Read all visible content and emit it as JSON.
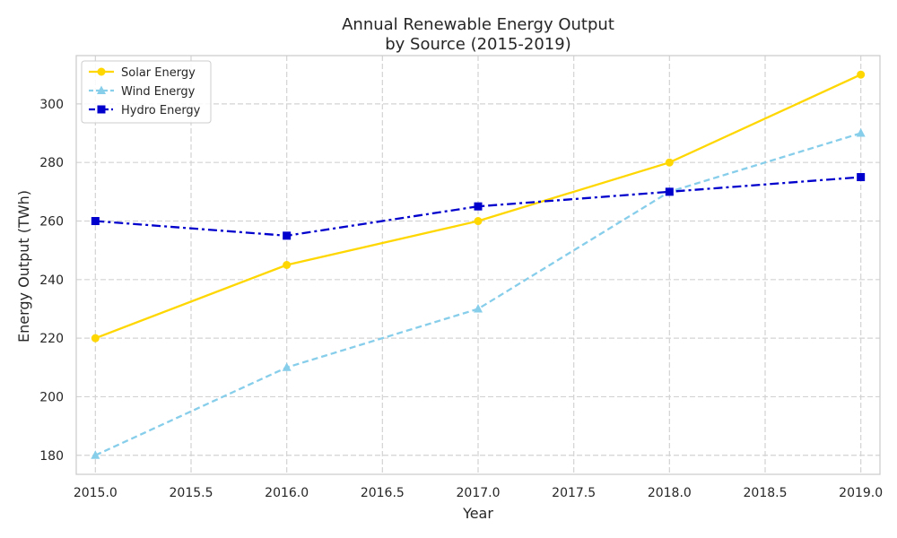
{
  "chart_data": {
    "type": "line",
    "title": [
      "Annual Renewable Energy Output",
      "by Source (2015-2019)"
    ],
    "xlabel": "Year",
    "ylabel": "Energy Output (TWh)",
    "x": [
      2015,
      2016,
      2017,
      2018,
      2019
    ],
    "xlim": [
      2014.9,
      2019.1
    ],
    "ylim": [
      173.5,
      316.5
    ],
    "xticks": [
      2015.0,
      2015.5,
      2016.0,
      2016.5,
      2017.0,
      2017.5,
      2018.0,
      2018.5,
      2019.0
    ],
    "xtick_labels": [
      "2015.0",
      "2015.5",
      "2016.0",
      "2016.5",
      "2017.0",
      "2017.5",
      "2018.0",
      "2018.5",
      "2019.0"
    ],
    "yticks": [
      180,
      200,
      220,
      240,
      260,
      280,
      300
    ],
    "ytick_labels": [
      "180",
      "200",
      "220",
      "240",
      "260",
      "280",
      "300"
    ],
    "grid": true,
    "legend_position": "top-left",
    "series": [
      {
        "name": "Solar Energy",
        "values": [
          220,
          245,
          260,
          280,
          310
        ],
        "color": "#FFD700",
        "linestyle": "solid",
        "marker": "circle"
      },
      {
        "name": "Wind Energy",
        "values": [
          180,
          210,
          230,
          270,
          290
        ],
        "color": "#87CEEB",
        "linestyle": "dashed",
        "marker": "triangle"
      },
      {
        "name": "Hydro Energy",
        "values": [
          260,
          255,
          265,
          270,
          275
        ],
        "color": "#0000CD",
        "linestyle": "dashdot",
        "marker": "square"
      }
    ]
  }
}
